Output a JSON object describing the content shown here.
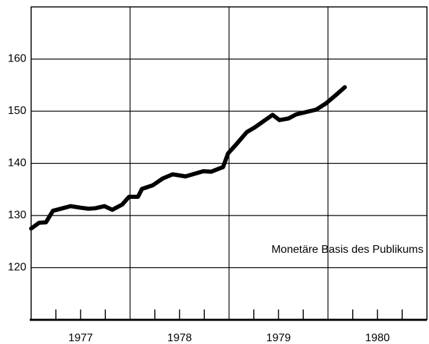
{
  "chart_data": {
    "type": "line",
    "annotation": "Monetäre Basis des Publikums",
    "series": [
      {
        "name": null,
        "color": "#000000",
        "x": [
          1977.0,
          1977.08,
          1977.15,
          1977.22,
          1977.3,
          1977.4,
          1977.5,
          1977.58,
          1977.65,
          1977.74,
          1977.82,
          1977.92,
          1977.99,
          1978.08,
          1978.12,
          1978.23,
          1978.33,
          1978.43,
          1978.56,
          1978.65,
          1978.74,
          1978.82,
          1978.94,
          1978.99,
          1979.08,
          1979.18,
          1979.26,
          1979.35,
          1979.44,
          1979.51,
          1979.6,
          1979.68,
          1979.77,
          1979.88,
          1979.98,
          1980.08,
          1980.17
        ],
        "values": [
          127.5,
          128.6,
          128.7,
          130.9,
          131.3,
          131.8,
          131.5,
          131.3,
          131.4,
          131.8,
          131.1,
          132.1,
          133.6,
          133.6,
          135.1,
          135.8,
          137.1,
          137.9,
          137.5,
          138.0,
          138.5,
          138.4,
          139.3,
          141.9,
          143.8,
          146.0,
          146.9,
          148.1,
          149.3,
          148.3,
          148.6,
          149.4,
          149.8,
          150.3,
          151.5,
          153.1,
          154.6
        ]
      }
    ],
    "xlim": [
      1977,
      1981
    ],
    "xticks": [
      {
        "value": 1977.5,
        "label": "1977"
      },
      {
        "value": 1978.5,
        "label": "1978"
      },
      {
        "value": 1979.5,
        "label": "1979"
      },
      {
        "value": 1980.5,
        "label": "1980"
      }
    ],
    "xgrid": [
      1978,
      1979,
      1980
    ],
    "xminor": [
      1977.25,
      1977.5,
      1977.75,
      1978.25,
      1978.5,
      1978.75,
      1979.25,
      1979.5,
      1979.75,
      1980.25,
      1980.5,
      1980.75
    ],
    "ylim": [
      110,
      170
    ],
    "yticks": [
      120,
      130,
      140,
      150,
      160
    ],
    "grid": true
  }
}
